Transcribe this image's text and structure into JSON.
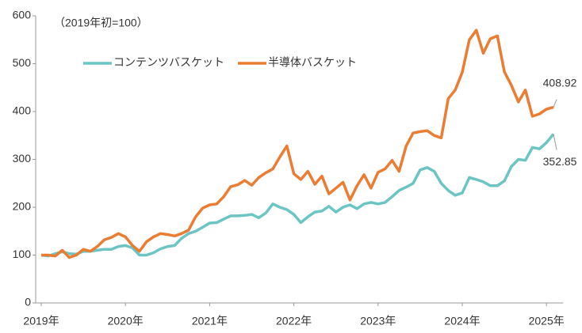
{
  "chart_data": {
    "type": "line",
    "annotation": "（2019年初=100）",
    "categories": [
      "2019年",
      null,
      null,
      null,
      null,
      null,
      null,
      null,
      null,
      null,
      null,
      null,
      "2020年",
      null,
      null,
      null,
      null,
      null,
      null,
      null,
      null,
      null,
      null,
      null,
      "2021年",
      null,
      null,
      null,
      null,
      null,
      null,
      null,
      null,
      null,
      null,
      null,
      "2022年",
      null,
      null,
      null,
      null,
      null,
      null,
      null,
      null,
      null,
      null,
      null,
      "2023年",
      null,
      null,
      null,
      null,
      null,
      null,
      null,
      null,
      null,
      null,
      null,
      "2024年",
      null,
      null,
      null,
      null,
      null,
      null,
      null,
      null,
      null,
      null,
      null,
      "2025年",
      null
    ],
    "series": [
      {
        "name": "コンテンツバスケット",
        "color": "#6cc5c2",
        "values": [
          100,
          98,
          103,
          107,
          103,
          102,
          108,
          108,
          110,
          112,
          112,
          118,
          120,
          115,
          100,
          100,
          105,
          113,
          118,
          120,
          135,
          145,
          150,
          158,
          167,
          168,
          175,
          182,
          182,
          183,
          185,
          178,
          188,
          207,
          200,
          195,
          185,
          168,
          180,
          190,
          192,
          202,
          190,
          200,
          205,
          197,
          207,
          210,
          207,
          210,
          222,
          235,
          242,
          250,
          278,
          283,
          275,
          250,
          235,
          225,
          230,
          262,
          258,
          253,
          245,
          245,
          255,
          285,
          300,
          298,
          325,
          322,
          335,
          352.85
        ]
      },
      {
        "name": "半導体バスケット",
        "color": "#ea7d33",
        "values": [
          100,
          100,
          98,
          110,
          95,
          100,
          112,
          108,
          118,
          132,
          137,
          145,
          138,
          120,
          108,
          128,
          138,
          145,
          143,
          140,
          145,
          152,
          180,
          198,
          205,
          207,
          222,
          243,
          247,
          256,
          246,
          262,
          272,
          280,
          305,
          328,
          270,
          258,
          275,
          248,
          265,
          228,
          240,
          252,
          215,
          245,
          268,
          240,
          273,
          280,
          298,
          275,
          328,
          355,
          358,
          360,
          350,
          345,
          427,
          445,
          482,
          550,
          570,
          522,
          552,
          558,
          483,
          455,
          420,
          445,
          390,
          395,
          405,
          408.92
        ]
      }
    ],
    "ylim": [
      0,
      600
    ],
    "yticks": [
      0,
      100,
      200,
      300,
      400,
      500,
      600
    ],
    "grid": false
  }
}
